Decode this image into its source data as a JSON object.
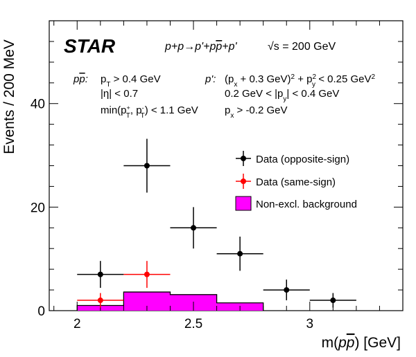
{
  "chart_data": {
    "type": "scatter",
    "title": "",
    "xlabel": "m(pp̄) [GeV]",
    "ylabel": "Events / 200 MeV",
    "xlim": [
      1.88,
      3.4
    ],
    "ylim": [
      0,
      56
    ],
    "xticks": [
      2,
      2.5,
      3
    ],
    "xtick_labels": [
      "2",
      "2.5",
      "3"
    ],
    "yticks": [
      0,
      20,
      40
    ],
    "ytick_labels": [
      "0",
      "20",
      "40"
    ],
    "grid": false,
    "legend_placement": "center-right",
    "series": [
      {
        "name": "Data (opposite-sign)",
        "kind": "errorbar",
        "color": "#000000",
        "points": [
          {
            "x": 2.1,
            "y": 7,
            "xerr": 0.1,
            "ylo": 4.4,
            "yhi": 9.6
          },
          {
            "x": 2.3,
            "y": 28,
            "xerr": 0.1,
            "ylo": 22.8,
            "yhi": 33.2
          },
          {
            "x": 2.5,
            "y": 16,
            "xerr": 0.1,
            "ylo": 12,
            "yhi": 20
          },
          {
            "x": 2.7,
            "y": 11,
            "xerr": 0.1,
            "ylo": 7.7,
            "yhi": 14.3
          },
          {
            "x": 2.9,
            "y": 4,
            "xerr": 0.1,
            "ylo": 2,
            "yhi": 6
          },
          {
            "x": 3.1,
            "y": 2,
            "xerr": 0.1,
            "ylo": 0.6,
            "yhi": 3.4
          }
        ]
      },
      {
        "name": "Data (same-sign)",
        "kind": "errorbar",
        "color": "#ff0000",
        "points": [
          {
            "x": 2.1,
            "y": 2,
            "xerr": 0.1,
            "ylo": 0.6,
            "yhi": 3.4
          },
          {
            "x": 2.3,
            "y": 7,
            "xerr": 0.1,
            "ylo": 4.4,
            "yhi": 9.6
          }
        ]
      },
      {
        "name": "Non-excl. background",
        "kind": "histogram",
        "color": "#ff00ff",
        "bins": [
          {
            "lo": 2.0,
            "hi": 2.2,
            "value": 1.0
          },
          {
            "lo": 2.2,
            "hi": 2.4,
            "value": 3.6
          },
          {
            "lo": 2.4,
            "hi": 2.6,
            "value": 3.1
          },
          {
            "lo": 2.6,
            "hi": 2.8,
            "value": 1.5
          }
        ]
      }
    ],
    "annotations": {
      "experiment": "STAR",
      "process": "p+p→p'+pp̄+p'",
      "energy": "√s = 200 GeV",
      "cuts_left_label": "pp̄:",
      "cuts_left": [
        "pT > 0.4 GeV",
        "|η| < 0.7",
        "min(pT+, pT-) < 1.1 GeV"
      ],
      "cuts_right_label": "p':",
      "cuts_right": [
        "(px + 0.3 GeV)2 + py2 < 0.25 GeV2",
        "0.2 GeV < |py| < 0.4 GeV",
        "px > -0.2 GeV"
      ]
    }
  }
}
